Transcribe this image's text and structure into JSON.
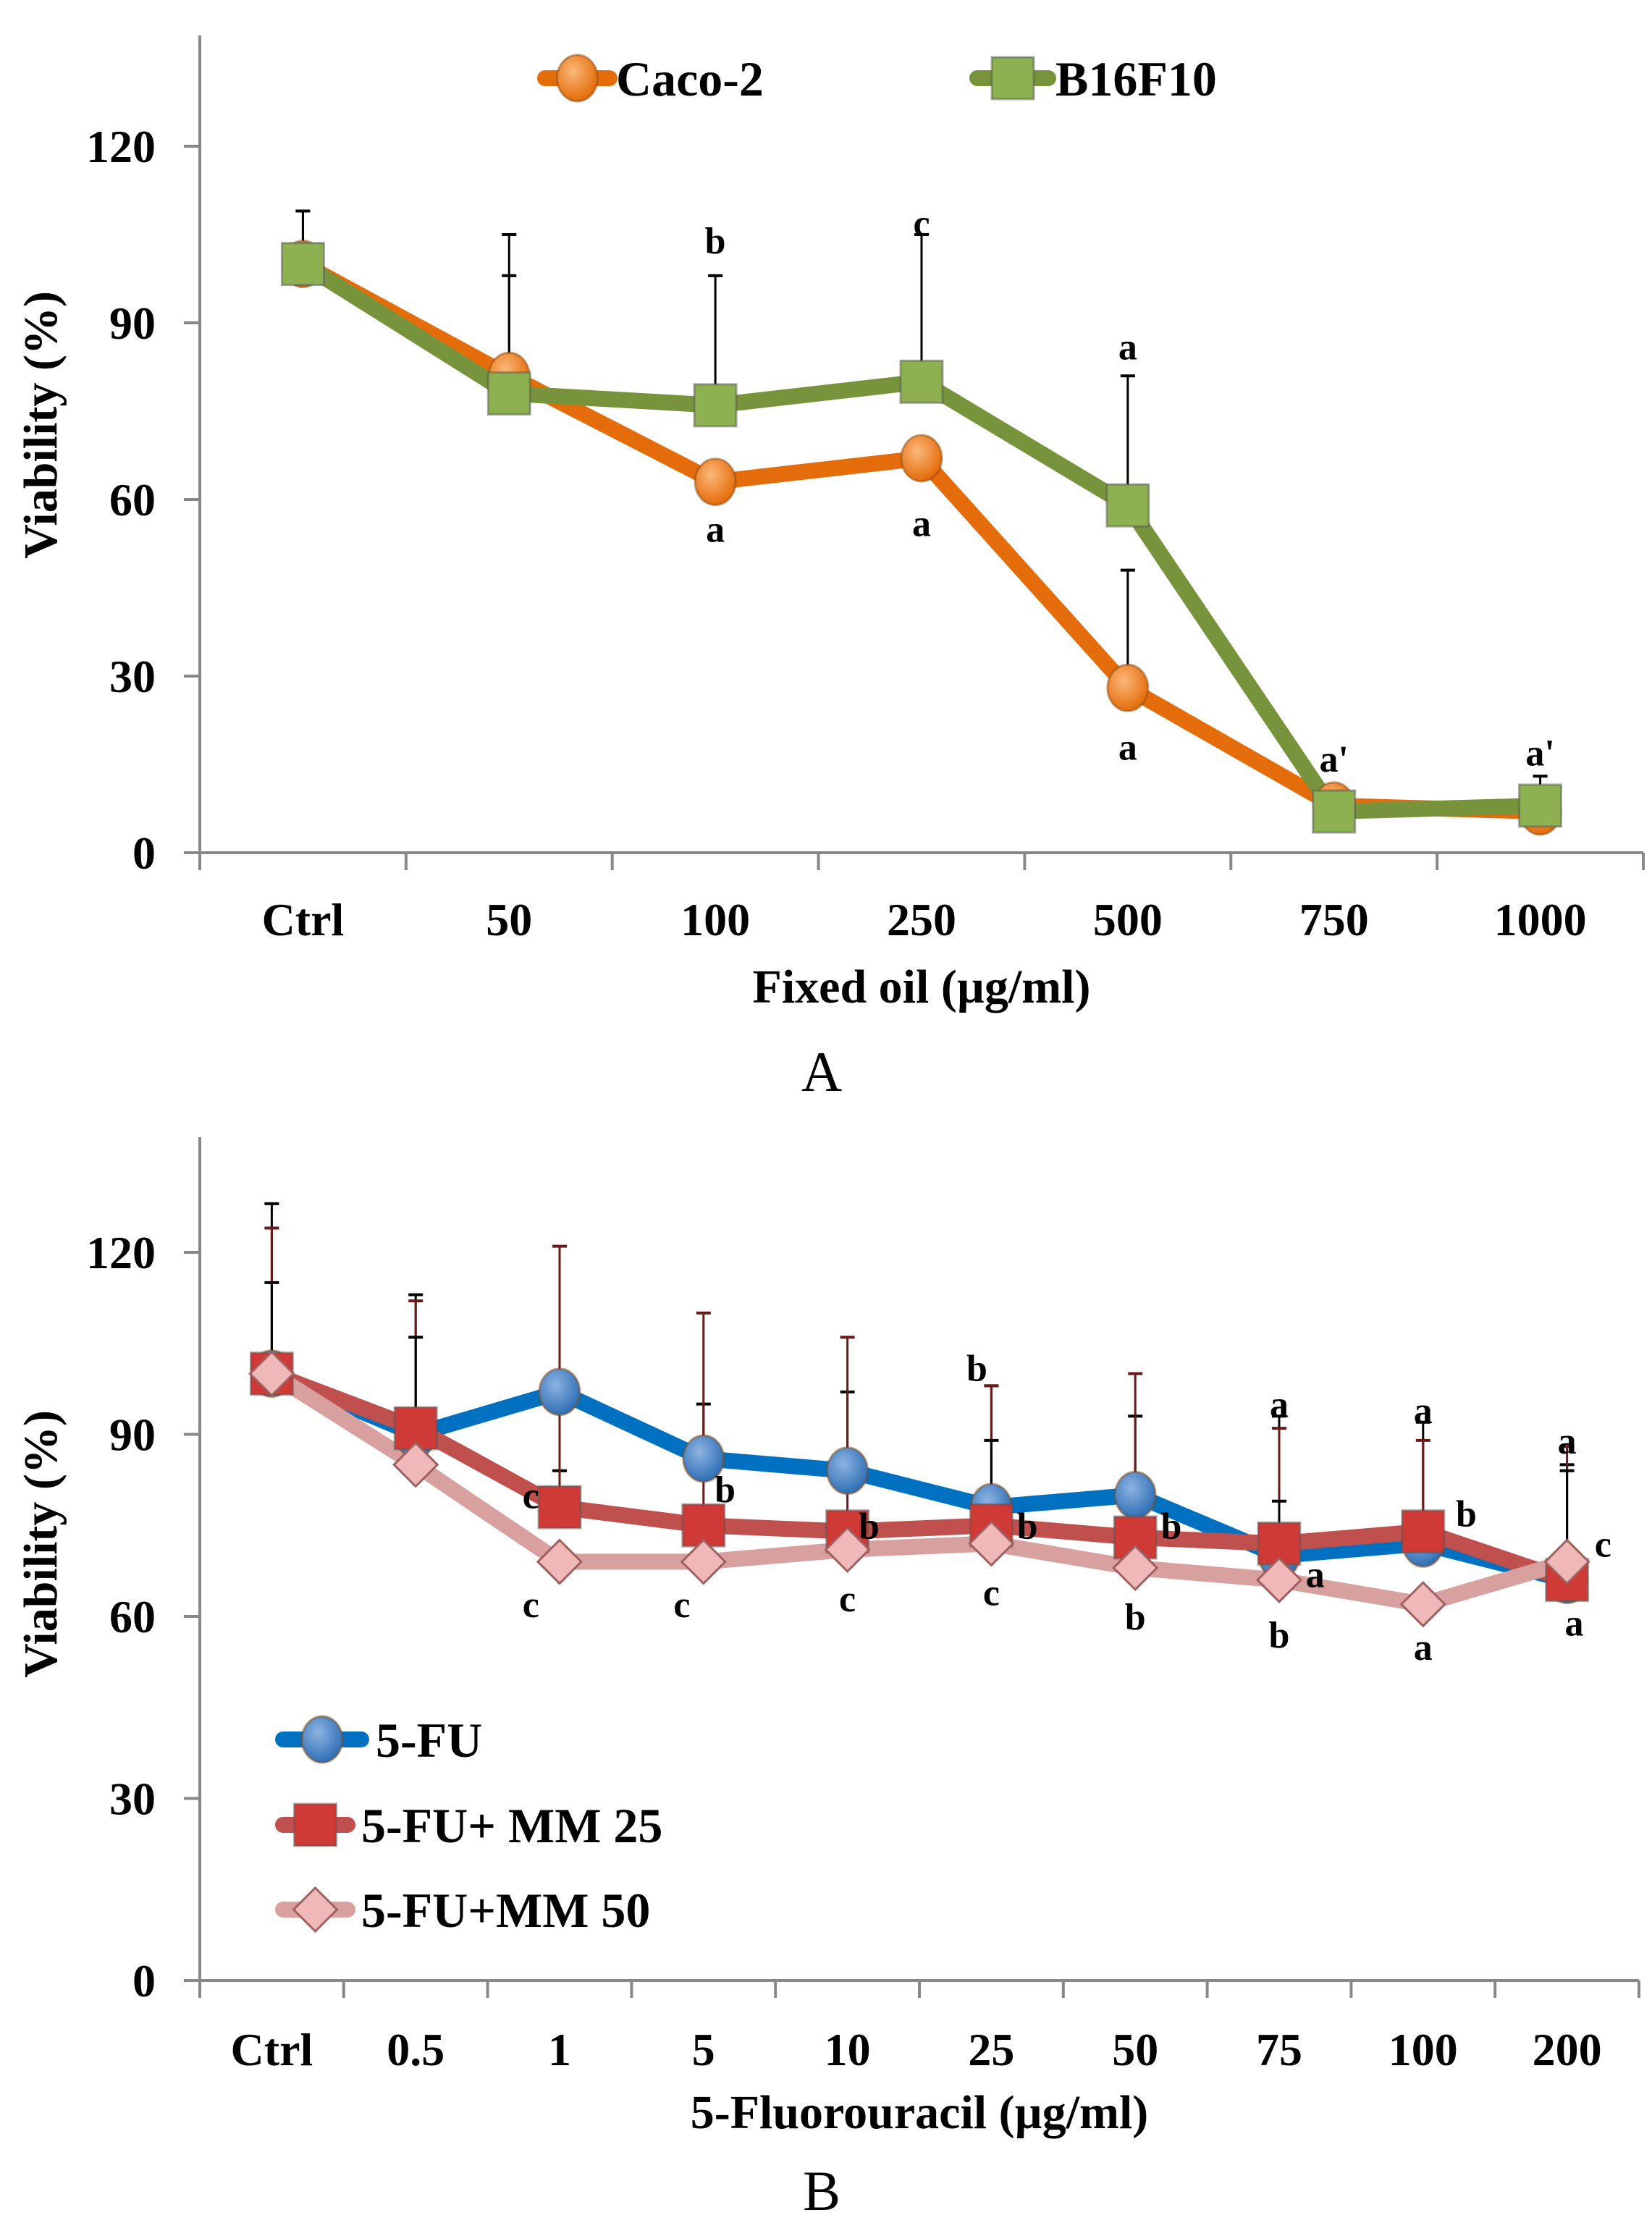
{
  "chart_data": [
    {
      "type": "line",
      "panel_label": "A",
      "xlabel": "Fixed oil (µg/ml)",
      "ylabel": "Viability (%)",
      "ylim": [
        0,
        140
      ],
      "yticks": [
        0,
        30,
        60,
        90,
        120
      ],
      "categories": [
        "Ctrl",
        "50",
        "100",
        "250",
        "500",
        "750",
        "1000"
      ],
      "legend_position": "top",
      "series": [
        {
          "name": "Caco-2",
          "color": "#E46C0A",
          "marker": "circle",
          "marker_color": "#F79646",
          "values": [
            100,
            81,
            63,
            67,
            28,
            8,
            7
          ],
          "err_upper": [
            109,
            98,
            null,
            null,
            48,
            null,
            null
          ]
        },
        {
          "name": "B16F10",
          "color": "#77933C",
          "marker": "square",
          "marker_color": "#8DB050",
          "values": [
            100,
            78,
            76,
            80,
            59,
            7,
            8
          ],
          "err_upper": [
            109,
            105,
            98,
            105,
            81,
            null,
            13
          ]
        }
      ],
      "annotations": [
        {
          "i": 2,
          "y": 104,
          "text": "b"
        },
        {
          "i": 2,
          "y": 55,
          "text": "a"
        },
        {
          "i": 3,
          "y": 107,
          "text": "c"
        },
        {
          "i": 3,
          "y": 56,
          "text": "a"
        },
        {
          "i": 4,
          "y": 86,
          "text": "a"
        },
        {
          "i": 4,
          "y": 18,
          "text": "a"
        },
        {
          "i": 5,
          "y": 16,
          "text": "a'"
        },
        {
          "i": 6,
          "y": 17,
          "text": "a'"
        }
      ]
    },
    {
      "type": "line",
      "panel_label": "B",
      "xlabel": "5-Fluorouracil (µg/ml)",
      "ylabel": "Viability (%)",
      "ylim": [
        0,
        140
      ],
      "yticks": [
        0,
        30,
        60,
        90,
        120
      ],
      "categories": [
        "Ctrl",
        "0.5",
        "1",
        "5",
        "10",
        "25",
        "50",
        "75",
        "100",
        "200"
      ],
      "legend_position": "bottom-left",
      "series": [
        {
          "name": "5-FU",
          "color": "#0070C0",
          "marker": "circle",
          "marker_color": "#4F81BD",
          "values": [
            100,
            90,
            97,
            86,
            84,
            78,
            80,
            70,
            72,
            66
          ],
          "err_upper": [
            128,
            113,
            84,
            95,
            97,
            98,
            93,
            93,
            92,
            85
          ]
        },
        {
          "name": "5-FU+ MM 25",
          "color": "#C0504D",
          "marker": "square",
          "marker_color": "#D03A36",
          "values": [
            100,
            91,
            78,
            75,
            74,
            75,
            73,
            72,
            74,
            66
          ],
          "err_upper": [
            124,
            112,
            121,
            110,
            106,
            98,
            100,
            91,
            89,
            88
          ]
        },
        {
          "name": "5-FU+MM 50",
          "color": "#D9A0A0",
          "marker": "diamond",
          "marker_color": "#F0B8B8",
          "values": [
            100,
            85,
            69,
            69,
            71,
            72,
            68,
            66,
            62,
            69
          ],
          "err_upper": [
            115,
            106,
            null,
            null,
            null,
            89,
            null,
            79,
            null,
            84
          ]
        }
      ],
      "annotations": [
        {
          "i": 2,
          "y": 80,
          "text": "c",
          "dx": -0.2
        },
        {
          "i": 2,
          "y": 62,
          "text": "c",
          "dx": -0.2
        },
        {
          "i": 3,
          "y": 81,
          "text": "b",
          "dx": 0.15
        },
        {
          "i": 3,
          "y": 62,
          "text": "c",
          "dx": -0.15
        },
        {
          "i": 4,
          "y": 75,
          "text": "b",
          "dx": 0.15
        },
        {
          "i": 4,
          "y": 63,
          "text": "c"
        },
        {
          "i": 5,
          "y": 101,
          "text": "b",
          "dx": -0.1
        },
        {
          "i": 5,
          "y": 75,
          "text": "b",
          "dx": 0.25
        },
        {
          "i": 5,
          "y": 64,
          "text": "c"
        },
        {
          "i": 6,
          "y": 75,
          "text": "b",
          "dx": 0.25
        },
        {
          "i": 6,
          "y": 60,
          "text": "b"
        },
        {
          "i": 7,
          "y": 95,
          "text": "a"
        },
        {
          "i": 7,
          "y": 67,
          "text": "a",
          "dx": 0.25
        },
        {
          "i": 7,
          "y": 57,
          "text": "b"
        },
        {
          "i": 8,
          "y": 94,
          "text": "a"
        },
        {
          "i": 8,
          "y": 77,
          "text": "b",
          "dx": 0.3
        },
        {
          "i": 8,
          "y": 55,
          "text": "a"
        },
        {
          "i": 9,
          "y": 89,
          "text": "a"
        },
        {
          "i": 9,
          "y": 72,
          "text": "c",
          "dx": 0.25
        },
        {
          "i": 9,
          "y": 59,
          "text": "a",
          "dx": 0.05
        }
      ]
    }
  ]
}
